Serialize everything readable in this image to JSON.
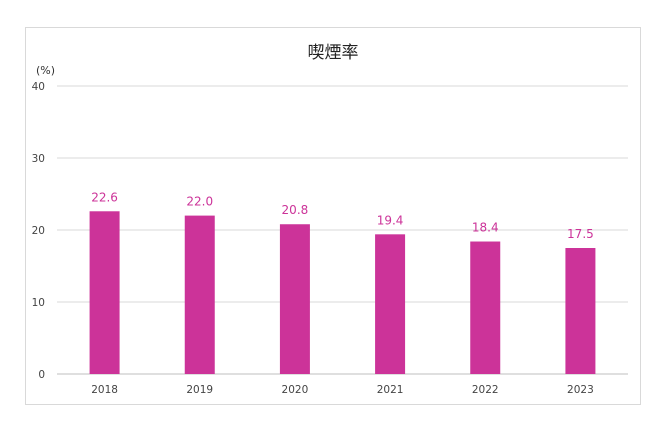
{
  "chart_data": {
    "type": "bar",
    "title": "喫煙率",
    "ylabel": "(%)",
    "xlabel": "",
    "categories": [
      "2018",
      "2019",
      "2020",
      "2021",
      "2022",
      "2023"
    ],
    "values": [
      22.6,
      22.0,
      20.8,
      19.4,
      18.4,
      17.5
    ],
    "value_labels": [
      "22.6",
      "22.0",
      "20.8",
      "19.4",
      "18.4",
      "17.5"
    ],
    "ylim": [
      0,
      40
    ],
    "yticks": [
      "0",
      "10",
      "20",
      "30",
      "40"
    ],
    "grid": true,
    "legend": "none",
    "bar_color": "#cc3399",
    "label_color": "#cc3399"
  }
}
